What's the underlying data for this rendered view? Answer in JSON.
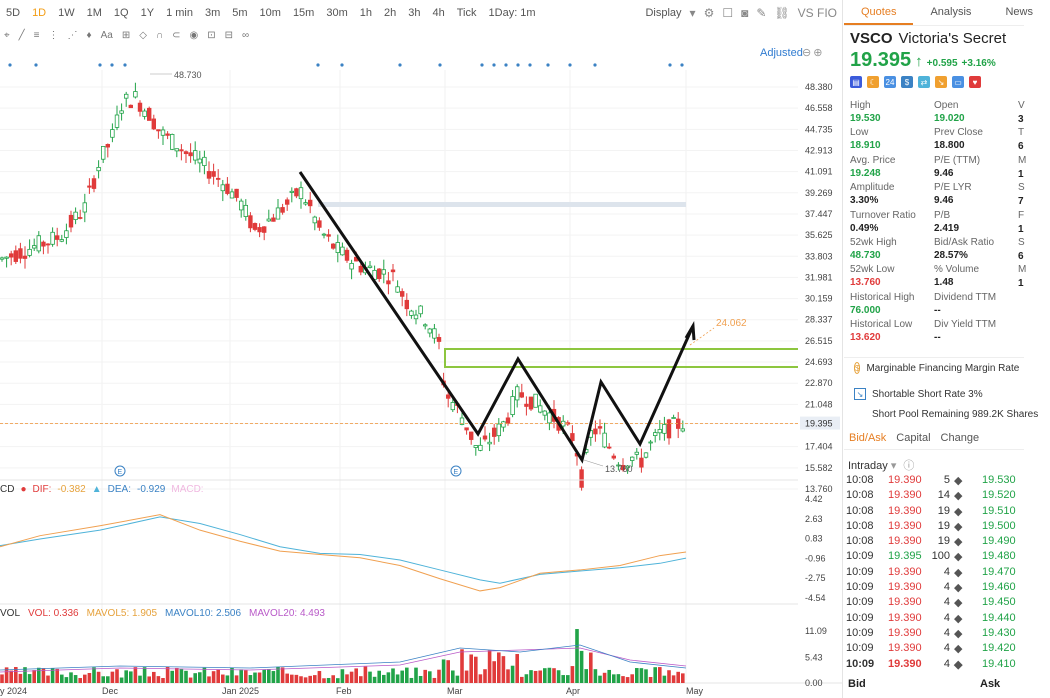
{
  "toolbar": {
    "timeframes": [
      "5D",
      "1D",
      "1W",
      "1M",
      "1Q",
      "1Y",
      "1 min",
      "3m",
      "5m",
      "10m",
      "15m",
      "30m",
      "1h",
      "2h",
      "3h",
      "4h",
      "Tick",
      "1Day: 1m"
    ],
    "active_timeframe": "1D",
    "display_label": "Display",
    "compare_label": "VS FIO"
  },
  "chart": {
    "adjusted_label": "Adjusted",
    "high_marker": "48.730",
    "low_marker": "13.760",
    "target_marker": "24.062",
    "price_axis": [
      "48.380",
      "46.558",
      "44.735",
      "42.913",
      "41.091",
      "39.269",
      "37.447",
      "35.625",
      "33.803",
      "31.981",
      "30.159",
      "28.337",
      "26.515",
      "24.693",
      "22.870",
      "21.048",
      "19.395",
      "17.404",
      "15.582",
      "13.760"
    ],
    "current_price_label": "19.395",
    "date_labels": [
      "y 2024",
      "Dec",
      "Jan 2025",
      "Feb",
      "Mar",
      "Apr",
      "May"
    ],
    "macd_axis": [
      "4.42",
      "2.63",
      "0.83",
      "-0.96",
      "-2.75",
      "-4.54"
    ],
    "vol_axis": [
      "11.09",
      "5.43",
      "0.00"
    ]
  },
  "macd_legend": {
    "name": "CD",
    "dif_label": "DIF:",
    "dif_value": "-0.382",
    "dea_label": "DEA:",
    "dea_value": "-0.929",
    "macd_label": "MACD:"
  },
  "vol_legend": {
    "name": "VOL",
    "vol": "VOL: 0.336",
    "mavol5": "MAVOL5: 1.905",
    "mavol10": "MAVOL10: 2.506",
    "mavol20": "MAVOL20: 4.493"
  },
  "colors": {
    "up": "#21a348",
    "down": "#e03b3b",
    "accent": "#e67e22",
    "dea": "#4fb3d9",
    "dif": "#f0a050"
  },
  "quote": {
    "tabs": [
      "Quotes",
      "Analysis",
      "News"
    ],
    "symbol": "VSCO",
    "name": "Victoria's Secret",
    "price": "19.395",
    "arrow": "↑",
    "change": "+0.595",
    "change_pct": "+3.16%",
    "stats": [
      {
        "label": "High",
        "value": "19.530",
        "color": "g"
      },
      {
        "label": "Open",
        "value": "19.020",
        "color": "g"
      },
      {
        "label": "Low",
        "value": "18.910",
        "color": "g"
      },
      {
        "label": "Prev Close",
        "value": "18.800",
        "color": "k"
      },
      {
        "label": "Avg. Price",
        "value": "19.248",
        "color": "g"
      },
      {
        "label": "P/E (TTM)",
        "value": "9.46",
        "color": "k"
      },
      {
        "label": "Amplitude",
        "value": "3.30%",
        "color": "k"
      },
      {
        "label": "P/E LYR",
        "value": "9.46",
        "color": "k"
      },
      {
        "label": "Turnover Ratio",
        "value": "0.49%",
        "color": "k"
      },
      {
        "label": "P/B",
        "value": "2.419",
        "color": "k"
      },
      {
        "label": "52wk High",
        "value": "48.730",
        "color": "g"
      },
      {
        "label": "Bid/Ask Ratio",
        "value": "28.57%",
        "color": "k"
      },
      {
        "label": "52wk Low",
        "value": "13.760",
        "color": "r"
      },
      {
        "label": "% Volume",
        "value": "1.48",
        "color": "k"
      },
      {
        "label": "Historical High",
        "value": "76.000",
        "color": "g"
      },
      {
        "label": "Dividend TTM",
        "value": "--",
        "color": "k"
      },
      {
        "label": "Historical Low",
        "value": "13.620",
        "color": "r"
      },
      {
        "label": "Div Yield TTM",
        "value": "--",
        "color": "k"
      }
    ],
    "third_col_partial": [
      "V",
      "3",
      "T",
      "6",
      "M",
      "1",
      "S",
      "7",
      "F",
      "1",
      "S",
      "6",
      "M",
      "1"
    ],
    "margin_financing": "Marginable Financing Margin Rate",
    "shortable": "Shortable Short Rate 3%",
    "short_pool": "Short Pool Remaining 989.2K Shares",
    "subtabs": [
      "Bid/Ask",
      "Capital",
      "Change"
    ],
    "intraday_label": "Intraday",
    "ticks": [
      {
        "time": "10:08",
        "price": "19.390",
        "vol": "5",
        "ask": "19.530"
      },
      {
        "time": "10:08",
        "price": "19.390",
        "vol": "14",
        "ask": "19.520"
      },
      {
        "time": "10:08",
        "price": "19.390",
        "vol": "19",
        "ask": "19.510"
      },
      {
        "time": "10:08",
        "price": "19.390",
        "vol": "19",
        "ask": "19.500"
      },
      {
        "time": "10:08",
        "price": "19.390",
        "vol": "19",
        "ask": "19.490"
      },
      {
        "time": "10:09",
        "price": "19.395",
        "vol": "100",
        "ask": "19.480"
      },
      {
        "time": "10:09",
        "price": "19.390",
        "vol": "4",
        "ask": "19.470"
      },
      {
        "time": "10:09",
        "price": "19.390",
        "vol": "4",
        "ask": "19.460"
      },
      {
        "time": "10:09",
        "price": "19.390",
        "vol": "4",
        "ask": "19.450"
      },
      {
        "time": "10:09",
        "price": "19.390",
        "vol": "4",
        "ask": "19.440"
      },
      {
        "time": "10:09",
        "price": "19.390",
        "vol": "4",
        "ask": "19.430"
      },
      {
        "time": "10:09",
        "price": "19.390",
        "vol": "4",
        "ask": "19.420"
      },
      {
        "time": "10:09",
        "price": "19.390",
        "vol": "4",
        "ask": "19.410"
      }
    ],
    "bid_label": "Bid",
    "ask_label": "Ask"
  }
}
